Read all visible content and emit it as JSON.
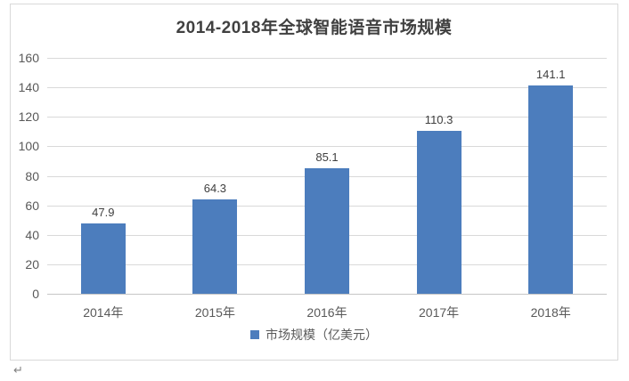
{
  "chart_data": {
    "type": "bar",
    "title": "2014-2018年全球智能语音市场规模",
    "categories": [
      "2014年",
      "2015年",
      "2016年",
      "2017年",
      "2018年"
    ],
    "values": [
      47.9,
      64.3,
      85.1,
      110.3,
      141.1
    ],
    "data_labels": [
      "47.9",
      "64.3",
      "85.1",
      "110.3",
      "141.1"
    ],
    "xlabel": "",
    "ylabel": "",
    "ylim": [
      0,
      160
    ],
    "yticks": [
      0,
      20,
      40,
      60,
      80,
      100,
      120,
      140,
      160
    ],
    "grid": true,
    "legend": [
      "市场规模（亿美元）"
    ],
    "legend_position": "bottom",
    "bar_color": "#4c7dbd",
    "gridline_color": "#d9d9d9",
    "title_color": "#404040",
    "tick_label_color": "#595959"
  },
  "marks": {
    "paragraph_return": "↵"
  }
}
